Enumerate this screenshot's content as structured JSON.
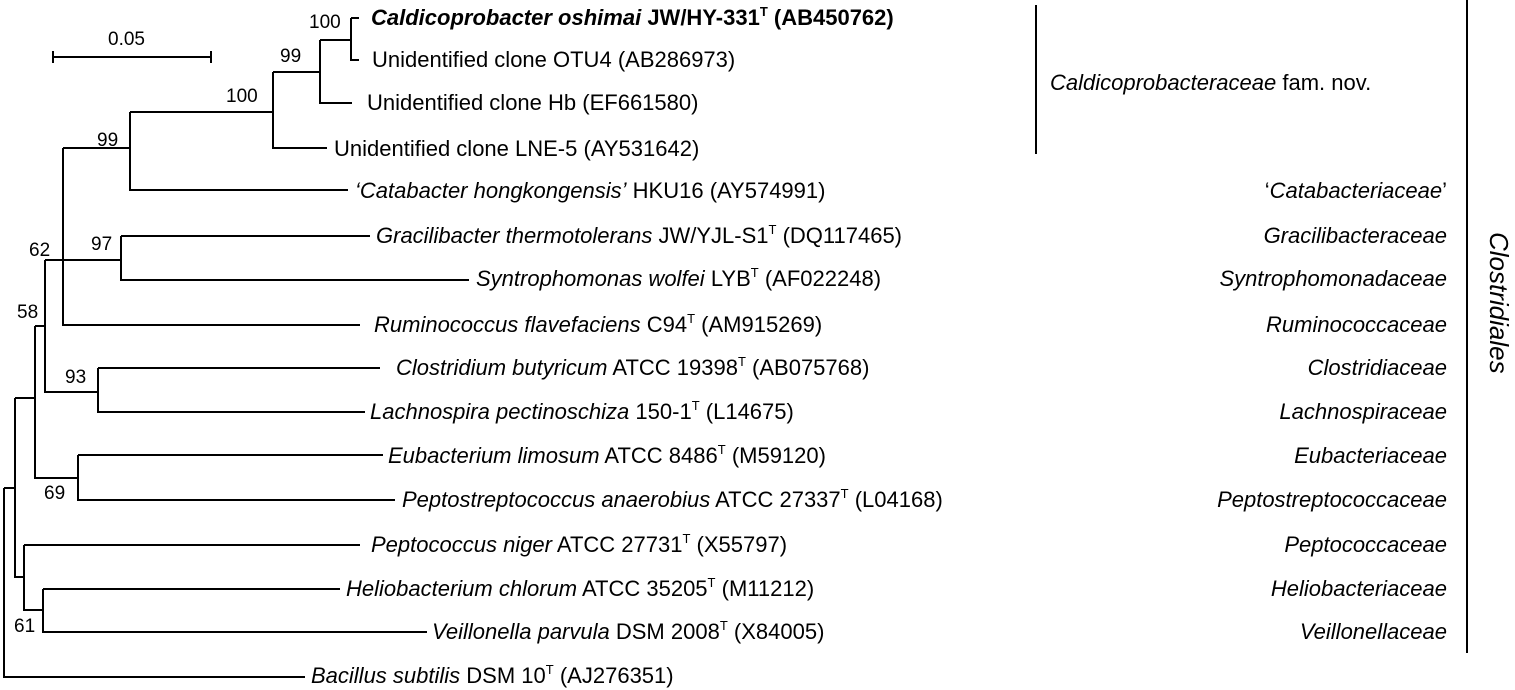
{
  "scale_bar": {
    "label": "0.05"
  },
  "taxa": [
    {
      "id": "t1",
      "name": "Caldicoprobacter oshimai",
      "strain": "JW/HY-331",
      "type_strain": "T",
      "accession": "(AB450762)",
      "bold": true
    },
    {
      "id": "t2",
      "name": "",
      "strain": "Unidentified clone OTU4",
      "type_strain": "",
      "accession": "(AB286973)"
    },
    {
      "id": "t3",
      "name": "",
      "strain": "Unidentified clone Hb",
      "type_strain": "",
      "accession": "(EF661580)"
    },
    {
      "id": "t4",
      "name": "",
      "strain": "Unidentified clone LNE-5",
      "type_strain": "",
      "accession": "(AY531642)"
    },
    {
      "id": "t5",
      "name": "‘Catabacter hongkongensis’",
      "strain": "HKU16",
      "type_strain": "",
      "accession": "(AY574991)"
    },
    {
      "id": "t6",
      "name": "Gracilibacter thermotolerans",
      "strain": "JW/YJL-S1",
      "type_strain": "T",
      "accession": "(DQ117465)"
    },
    {
      "id": "t7",
      "name": "Syntrophomonas wolfei",
      "strain": "LYB",
      "type_strain": "T",
      "accession": "(AF022248)"
    },
    {
      "id": "t8",
      "name": "Ruminococcus flavefaciens",
      "strain": "C94",
      "type_strain": "T",
      "accession": "(AM915269)"
    },
    {
      "id": "t9",
      "name": "Clostridium butyricum",
      "strain": "ATCC 19398",
      "type_strain": "T",
      "accession": "(AB075768)"
    },
    {
      "id": "t10",
      "name": "Lachnospira pectinoschiza",
      "strain": "150-1",
      "type_strain": "T",
      "accession": "(L14675)"
    },
    {
      "id": "t11",
      "name": "Eubacterium limosum",
      "strain": "ATCC 8486",
      "type_strain": "T",
      "accession": "(M59120)"
    },
    {
      "id": "t12",
      "name": "Peptostreptococcus anaerobius",
      "strain": "ATCC 27337",
      "type_strain": "T",
      "accession": "(L04168)"
    },
    {
      "id": "t13",
      "name": "Peptococcus niger",
      "strain": "ATCC 27731",
      "type_strain": "T",
      "accession": "(X55797)"
    },
    {
      "id": "t14",
      "name": "Heliobacterium chlorum",
      "strain": "ATCC 35205",
      "type_strain": "T",
      "accession": "(M11212)"
    },
    {
      "id": "t15",
      "name": "Veillonella parvula",
      "strain": "DSM 2008",
      "type_strain": "T",
      "accession": "(X84005)"
    },
    {
      "id": "t16",
      "name": "Bacillus subtilis",
      "strain": "DSM 10",
      "type_strain": "T",
      "accession": "(AJ276351)"
    }
  ],
  "bootstrap": [
    "100",
    "99",
    "100",
    "99",
    "97",
    "62",
    "58",
    "93",
    "69",
    "61"
  ],
  "families": {
    "caldico_italic": "Caldicoprobacteraceae",
    "caldico_suffix": " fam. nov.",
    "catabacter_open": "‘",
    "catabacter_name": "Catabacteriaceae",
    "catabacter_close": "’",
    "gracilibacter": "Gracilibacteraceae",
    "syntrophomonad": "Syntrophomonadaceae",
    "ruminococc": "Ruminococcaceae",
    "clostridi": "Clostridiaceae",
    "lachnospir": "Lachnospiraceae",
    "eubacteri": "Eubacteriaceae",
    "peptostrepto": "Peptostreptococcaceae",
    "peptococc": "Peptococcaceae",
    "heliobacteri": "Heliobacteriaceae",
    "veillonell": "Veillonellaceae"
  },
  "order": "Clostridiales"
}
